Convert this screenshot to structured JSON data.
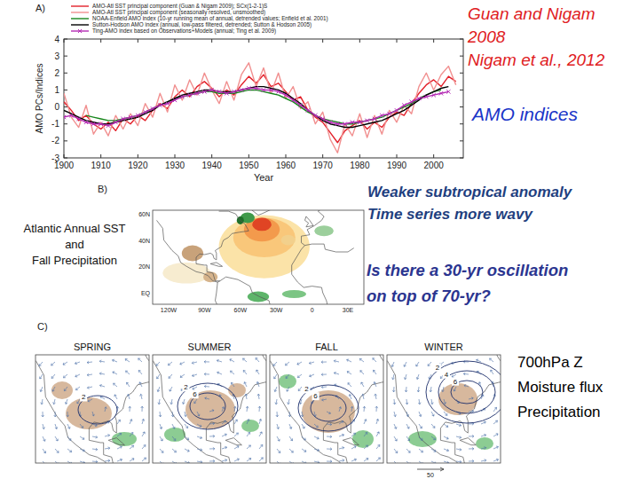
{
  "chart_data": {
    "type": "line",
    "title": "A)",
    "x_label": "Year",
    "y_label": "AMO PCs/Indices",
    "x": [
      1900,
      1902,
      1904,
      1906,
      1908,
      1910,
      1912,
      1914,
      1916,
      1918,
      1920,
      1922,
      1924,
      1926,
      1928,
      1930,
      1932,
      1934,
      1936,
      1938,
      1940,
      1942,
      1944,
      1946,
      1948,
      1950,
      1952,
      1954,
      1956,
      1958,
      1960,
      1962,
      1964,
      1966,
      1968,
      1970,
      1972,
      1974,
      1976,
      1978,
      1980,
      1982,
      1984,
      1986,
      1988,
      1990,
      1992,
      1994,
      1996,
      1998,
      2000,
      2002,
      2004,
      2006,
      2008
    ],
    "xlim": [
      1900,
      2008
    ],
    "xticks": [
      1900,
      1910,
      1920,
      1930,
      1940,
      1950,
      1960,
      1970,
      1980,
      1990,
      2000
    ],
    "ylim": [
      -3,
      4
    ],
    "yticks": [
      -3,
      -2,
      -1,
      0,
      1,
      2,
      3,
      4
    ],
    "grid": false,
    "legend": "top",
    "series": [
      {
        "name": "AMO-Atl SST principal component (Guan & Nigam 2009); SCx(1-2-1)S",
        "color": "#e3202a",
        "line_style": "solid",
        "values": [
          0.3,
          -0.2,
          -0.8,
          -0.5,
          -1.0,
          -1.3,
          -0.9,
          -1.4,
          -0.7,
          -1.0,
          -0.5,
          -0.8,
          -0.2,
          0.2,
          -0.1,
          0.6,
          1.0,
          0.6,
          1.2,
          1.5,
          1.1,
          0.6,
          1.0,
          0.7,
          1.3,
          1.8,
          1.4,
          1.9,
          1.2,
          1.4,
          0.9,
          0.4,
          0.6,
          -0.2,
          -0.6,
          -0.9,
          -1.5,
          -2.1,
          -1.4,
          -1.1,
          -0.8,
          -1.3,
          -0.9,
          -1.2,
          -0.6,
          -0.3,
          -0.5,
          0.2,
          0.8,
          1.3,
          1.6,
          1.2,
          1.8,
          1.5,
          null
        ]
      },
      {
        "name": "AMO-Atl SST principal component (seasonally resolved, unsmoothed)",
        "color": "#f19090",
        "line_style": "solid",
        "values": [
          0.8,
          -0.6,
          -1.2,
          0.1,
          -1.6,
          -0.9,
          -1.7,
          -0.5,
          -1.3,
          -0.4,
          -1.1,
          0.2,
          -0.6,
          0.8,
          -0.3,
          1.3,
          0.4,
          1.6,
          0.7,
          2.0,
          1.0,
          0.2,
          1.5,
          0.4,
          1.9,
          2.6,
          1.2,
          2.3,
          0.8,
          2.0,
          0.5,
          1.2,
          -0.1,
          0.3,
          -1.0,
          -0.3,
          -1.9,
          -2.7,
          -1.0,
          -1.7,
          -0.4,
          -1.8,
          -0.5,
          -1.6,
          -0.2,
          -0.9,
          0.1,
          -0.4,
          1.2,
          2.0,
          1.0,
          1.9,
          2.4,
          1.3,
          null
        ]
      },
      {
        "name": "NOAA-Enfield AMO index (10-yr running mean of annual, detrended values; Enfield et al. 2001)",
        "color": "#17861c",
        "line_style": "solid",
        "values": [
          null,
          null,
          null,
          -0.5,
          -0.6,
          -0.7,
          -0.8,
          -0.8,
          -0.7,
          -0.6,
          -0.5,
          -0.3,
          -0.1,
          0.1,
          0.3,
          0.5,
          0.6,
          0.7,
          0.8,
          0.9,
          0.9,
          0.8,
          0.8,
          0.8,
          0.9,
          1.0,
          1.0,
          0.9,
          0.8,
          0.7,
          0.5,
          0.3,
          0.0,
          -0.3,
          -0.5,
          -0.7,
          -0.8,
          -0.9,
          -1.0,
          -1.0,
          -0.9,
          -0.8,
          -0.7,
          -0.6,
          -0.4,
          -0.2,
          0.0,
          0.2,
          0.5,
          0.7,
          0.9,
          1.0,
          null,
          null,
          null
        ]
      },
      {
        "name": "Sutton-Hodson AMO index (annual, low-pass filtered, detrended; Sutton & Hodson 2005)",
        "color": "#000000",
        "line_style": "solid",
        "values": [
          -0.2,
          -0.4,
          -0.6,
          -0.8,
          -0.9,
          -1.0,
          -1.0,
          -0.9,
          -0.8,
          -0.7,
          -0.6,
          -0.4,
          -0.2,
          0.1,
          0.3,
          0.5,
          0.7,
          0.8,
          0.9,
          1.0,
          1.0,
          0.9,
          0.9,
          0.9,
          1.0,
          1.1,
          1.2,
          1.2,
          1.1,
          1.0,
          0.8,
          0.5,
          0.2,
          -0.2,
          -0.5,
          -0.8,
          -1.0,
          -1.1,
          -1.2,
          -1.2,
          -1.1,
          -1.0,
          -0.9,
          -0.8,
          -0.6,
          -0.4,
          -0.2,
          0.1,
          0.4,
          0.7,
          0.9,
          1.1,
          1.2,
          null,
          null
        ]
      },
      {
        "name": "Ting-AMO index based on Observations+Models (annual; Ting et al. 2009)",
        "color": "#b42bb4",
        "line_style": "solid",
        "marker": "x",
        "values": [
          -0.6,
          -0.5,
          -0.7,
          -0.9,
          -1.0,
          -1.0,
          -1.1,
          -0.9,
          -0.7,
          -0.6,
          -0.5,
          -0.3,
          -0.1,
          0.1,
          0.2,
          0.4,
          0.6,
          0.7,
          0.8,
          0.9,
          1.0,
          0.9,
          0.8,
          0.9,
          1.0,
          1.1,
          1.1,
          1.0,
          1.0,
          0.9,
          0.7,
          0.4,
          0.1,
          -0.2,
          -0.5,
          -0.7,
          -0.9,
          -1.0,
          -1.0,
          -0.9,
          -0.9,
          -0.8,
          -0.7,
          -0.5,
          -0.4,
          -0.2,
          0.1,
          0.3,
          0.5,
          0.6,
          0.7,
          0.8,
          0.9,
          null,
          null
        ]
      }
    ]
  },
  "slide": {
    "citation": [
      "Guan and Nigam",
      "2008",
      "Nigam et al., 2012"
    ],
    "heading": "AMO  indices",
    "note_1": [
      "Weaker subtropical  anomaly",
      "Time series more wavy"
    ],
    "note_2": [
      "Is there a 30-yr oscillation",
      "on top of 70-yr?"
    ],
    "panel_b": {
      "label": "B)",
      "caption": [
        "Atlantic Annual SST",
        "and",
        "Fall Precipitation"
      ],
      "lat_labels": [
        "60N",
        "40N",
        "20N",
        "EQ"
      ],
      "lon_labels": [
        "120W",
        "90W",
        "60W",
        "30W",
        "0",
        "30E"
      ]
    },
    "panel_c": {
      "label": "C)",
      "seasons": [
        {
          "name": "SPRING",
          "contours": [
            "2"
          ]
        },
        {
          "name": "SUMMER",
          "contours": [
            "6",
            "2"
          ]
        },
        {
          "name": "FALL",
          "contours": [
            "6",
            "2"
          ]
        },
        {
          "name": "WINTER",
          "contours": [
            "6",
            "4",
            "2"
          ]
        }
      ],
      "variables": [
        "700hPa Z",
        "Moisture flux",
        "Precipitation"
      ],
      "scale_label": "50"
    }
  }
}
